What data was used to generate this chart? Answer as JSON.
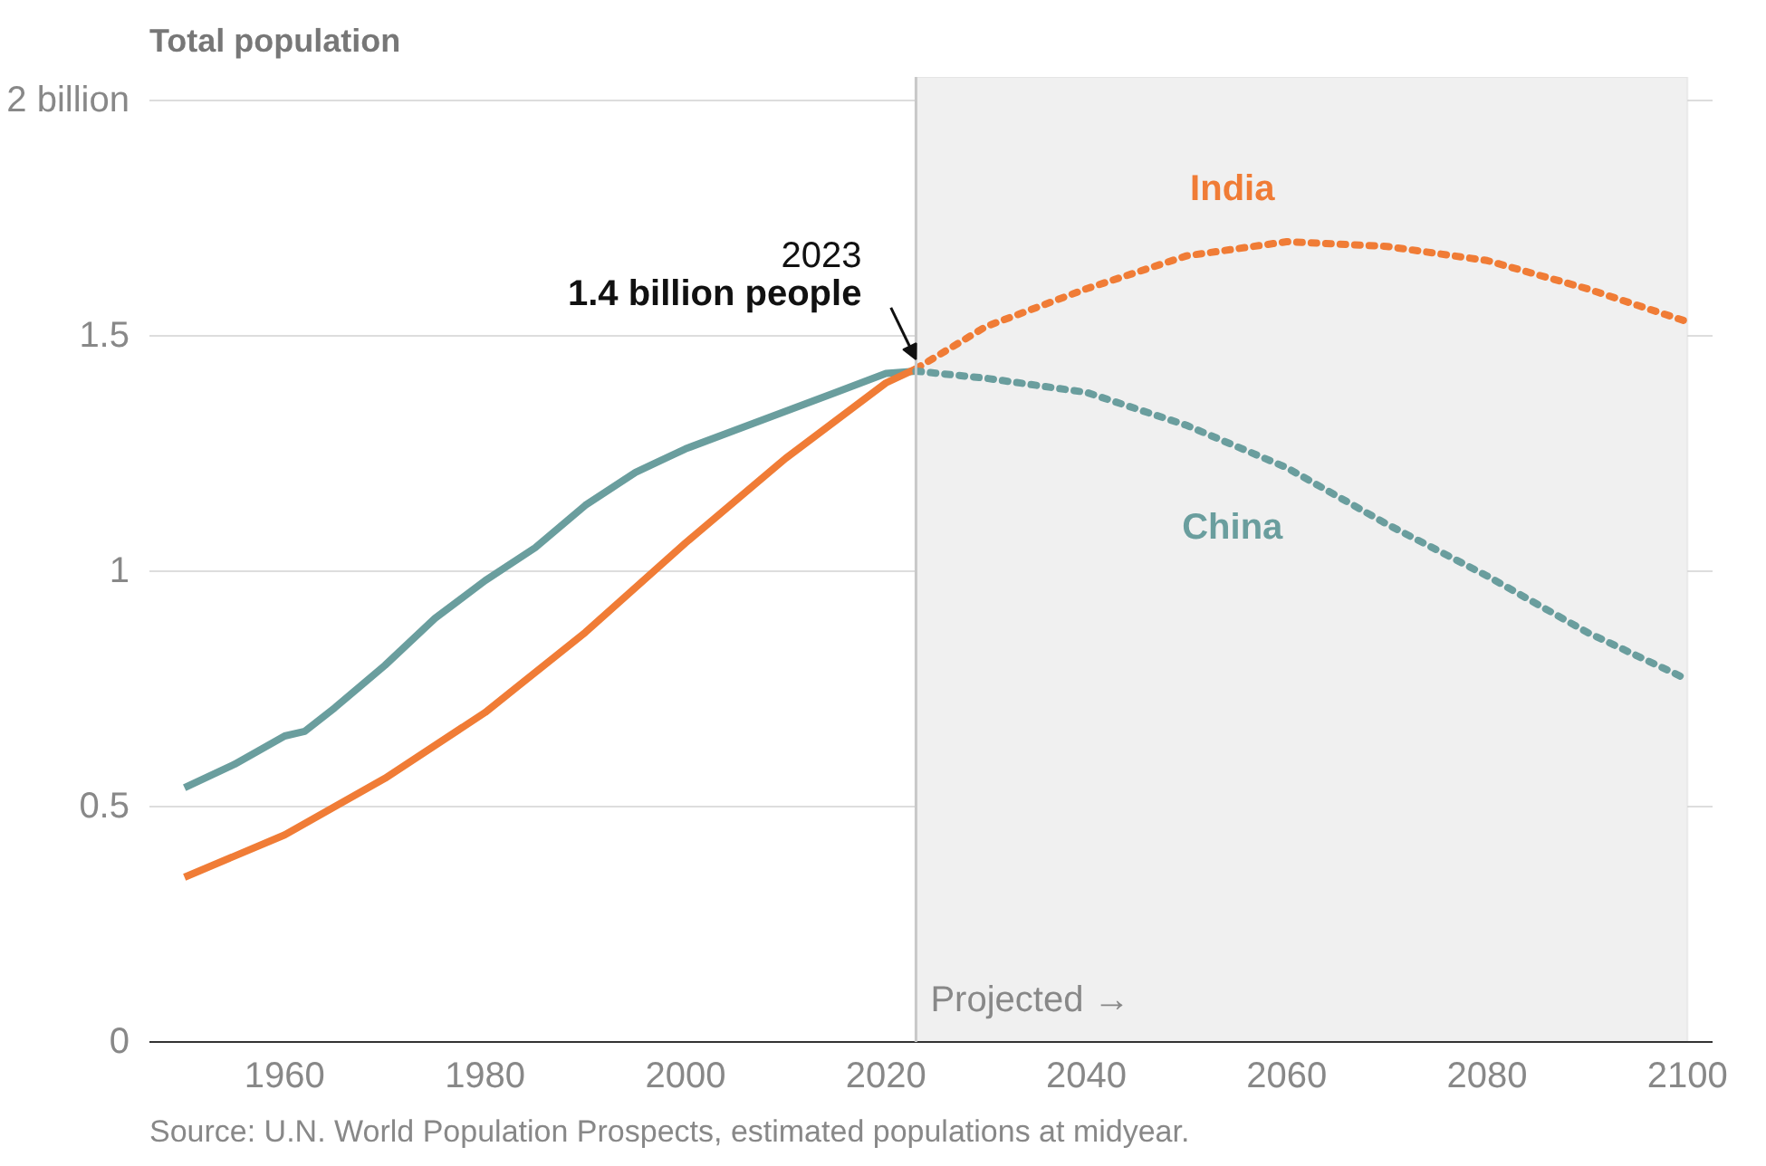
{
  "chart_data": {
    "type": "line",
    "ylabel": "Total population",
    "xlim": [
      1946.5,
      2102.5
    ],
    "ylim": [
      0,
      2.05
    ],
    "xticks": [
      1960,
      1980,
      2000,
      2020,
      2040,
      2060,
      2080,
      2100
    ],
    "yticks": [
      0,
      0.5,
      1,
      1.5,
      {
        "value": 2,
        "label": "2 billion"
      }
    ],
    "grid": "y",
    "series": [
      {
        "color": "#6a9e9e",
        "line_style": "solid",
        "x": [
          1950,
          1955,
          1960,
          1962,
          1965,
          1970,
          1975,
          1980,
          1985,
          1990,
          1995,
          2000,
          2005,
          2010,
          2015,
          2020,
          2023
        ],
        "values": [
          0.54,
          0.59,
          0.65,
          0.66,
          0.71,
          0.8,
          0.9,
          0.98,
          1.05,
          1.14,
          1.21,
          1.26,
          1.3,
          1.34,
          1.38,
          1.42,
          1.425
        ]
      },
      {
        "color": "#f07c36",
        "line_style": "solid",
        "x": [
          1950,
          1960,
          1970,
          1980,
          1990,
          2000,
          2010,
          2020,
          2023
        ],
        "values": [
          0.35,
          0.44,
          0.56,
          0.7,
          0.87,
          1.06,
          1.24,
          1.4,
          1.43
        ]
      },
      {
        "name": "India",
        "color": "#f07c36",
        "line_style": "dotted",
        "x": [
          2023,
          2030,
          2040,
          2050,
          2060,
          2070,
          2080,
          2090,
          2100
        ],
        "values": [
          1.43,
          1.52,
          1.6,
          1.67,
          1.7,
          1.69,
          1.66,
          1.6,
          1.53
        ]
      },
      {
        "name": "China",
        "color": "#6a9e9e",
        "line_style": "dotted",
        "x": [
          2023,
          2030,
          2040,
          2050,
          2060,
          2070,
          2080,
          2090,
          2100
        ],
        "values": [
          1.425,
          1.41,
          1.38,
          1.31,
          1.22,
          1.1,
          0.99,
          0.87,
          0.77
        ]
      }
    ],
    "bands": [
      {
        "axis": "x",
        "from": 2023,
        "to": 2100,
        "label": "Projected →",
        "color": "#f0f0f0"
      }
    ],
    "ref_lines": [
      {
        "axis": "x",
        "value": 2023,
        "label": null,
        "color": "#c8c8c8"
      }
    ],
    "annotations": [
      {
        "text": "2023\n1.4 billion people",
        "x": 2023,
        "y": 1.43
      },
      "Source: U.N. World Population Prospects, estimated populations at midyear."
    ]
  }
}
